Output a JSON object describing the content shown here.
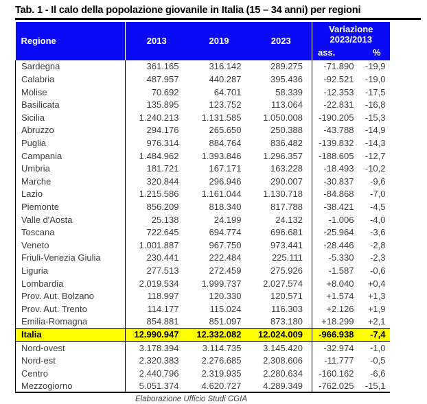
{
  "title": "Tab. 1 - Il calo della popolazione giovanile in Italia (15 – 34 anni) per regioni",
  "colors": {
    "header_bg": "#0b0bf7",
    "header_text": "#ffffff",
    "highlight_bg": "#ffff00",
    "body_text": "#3d3d3d",
    "border": "#000000"
  },
  "table": {
    "headers": {
      "region": "Regione",
      "year_2013": "2013",
      "year_2019": "2019",
      "year_2023": "2023",
      "variation_line1": "Variazione",
      "variation_line2": "2023/2013",
      "variation_abs": "ass.",
      "variation_pct": "%"
    },
    "rows": [
      {
        "region": "Sardegna",
        "y2013": "361.165",
        "y2019": "316.142",
        "y2023": "289.275",
        "abs": "-71.890",
        "pct": "-19,9"
      },
      {
        "region": "Calabria",
        "y2013": "487.957",
        "y2019": "440.287",
        "y2023": "395.436",
        "abs": "-92.521",
        "pct": "-19,0"
      },
      {
        "region": "Molise",
        "y2013": "70.692",
        "y2019": "64.701",
        "y2023": "58.339",
        "abs": "-12.353",
        "pct": "-17,5"
      },
      {
        "region": "Basilicata",
        "y2013": "135.895",
        "y2019": "123.752",
        "y2023": "113.064",
        "abs": "-22.831",
        "pct": "-16,8"
      },
      {
        "region": "Sicilia",
        "y2013": "1.240.213",
        "y2019": "1.131.585",
        "y2023": "1.050.008",
        "abs": "-190.205",
        "pct": "-15,3"
      },
      {
        "region": "Abruzzo",
        "y2013": "294.176",
        "y2019": "265.650",
        "y2023": "250.388",
        "abs": "-43.788",
        "pct": "-14,9"
      },
      {
        "region": "Puglia",
        "y2013": "976.314",
        "y2019": "884.764",
        "y2023": "836.482",
        "abs": "-139.832",
        "pct": "-14,3"
      },
      {
        "region": "Campania",
        "y2013": "1.484.962",
        "y2019": "1.393.846",
        "y2023": "1.296.357",
        "abs": "-188.605",
        "pct": "-12,7"
      },
      {
        "region": "Umbria",
        "y2013": "181.721",
        "y2019": "167.171",
        "y2023": "163.228",
        "abs": "-18.493",
        "pct": "-10,2"
      },
      {
        "region": "Marche",
        "y2013": "320.844",
        "y2019": "296.946",
        "y2023": "290.007",
        "abs": "-30.837",
        "pct": "-9,6"
      },
      {
        "region": "Lazio",
        "y2013": "1.215.586",
        "y2019": "1.161.044",
        "y2023": "1.130.718",
        "abs": "-84.868",
        "pct": "-7,0"
      },
      {
        "region": "Piemonte",
        "y2013": "856.209",
        "y2019": "818.340",
        "y2023": "817.788",
        "abs": "-38.421",
        "pct": "-4,5"
      },
      {
        "region": "Valle d'Aosta",
        "y2013": "25.138",
        "y2019": "24.199",
        "y2023": "24.132",
        "abs": "-1.006",
        "pct": "-4,0"
      },
      {
        "region": "Toscana",
        "y2013": "722.645",
        "y2019": "694.774",
        "y2023": "696.681",
        "abs": "-25.964",
        "pct": "-3,6"
      },
      {
        "region": "Veneto",
        "y2013": "1.001.887",
        "y2019": "967.750",
        "y2023": "973.441",
        "abs": "-28.446",
        "pct": "-2,8"
      },
      {
        "region": "Friuli-Venezia Giulia",
        "y2013": "230.441",
        "y2019": "222.484",
        "y2023": "225.111",
        "abs": "-5.330",
        "pct": "-2,3"
      },
      {
        "region": "Liguria",
        "y2013": "277.513",
        "y2019": "272.459",
        "y2023": "275.926",
        "abs": "-1.587",
        "pct": "-0,6"
      },
      {
        "region": "Lombardia",
        "y2013": "2.019.534",
        "y2019": "1.999.737",
        "y2023": "2.027.574",
        "abs": "+8.040",
        "pct": "+0,4"
      },
      {
        "region": "Prov. Aut. Bolzano",
        "y2013": "118.997",
        "y2019": "120.330",
        "y2023": "120.571",
        "abs": "+1.574",
        "pct": "+1,3"
      },
      {
        "region": "Prov. Aut. Trento",
        "y2013": "114.177",
        "y2019": "115.024",
        "y2023": "116.303",
        "abs": "+2.126",
        "pct": "+1,9"
      },
      {
        "region": "Emilia-Romagna",
        "y2013": "854.881",
        "y2019": "851.097",
        "y2023": "873.180",
        "abs": "+18.299",
        "pct": "+2,1"
      }
    ],
    "total_row": {
      "region": "Italia",
      "y2013": "12.990.947",
      "y2019": "12.332.082",
      "y2023": "12.024.009",
      "abs": "-966.938",
      "pct": "-7,4"
    },
    "macro_rows": [
      {
        "region": "Nord-ovest",
        "y2013": "3.178.394",
        "y2019": "3.114.735",
        "y2023": "3.145.420",
        "abs": "-32.974",
        "pct": "-1,0"
      },
      {
        "region": "Nord-est",
        "y2013": "2.320.383",
        "y2019": "2.276.685",
        "y2023": "2.308.606",
        "abs": "-11.777",
        "pct": "-0,5"
      },
      {
        "region": "Centro",
        "y2013": "2.440.796",
        "y2019": "2.319.935",
        "y2023": "2.280.634",
        "abs": "-160.162",
        "pct": "-6,6"
      },
      {
        "region": "Mezzogiorno",
        "y2013": "5.051.374",
        "y2019": "4.620.727",
        "y2023": "4.289.349",
        "abs": "-762.025",
        "pct": "-15,1"
      }
    ]
  },
  "footer": "Elaborazione Ufficio Studi CGIA"
}
